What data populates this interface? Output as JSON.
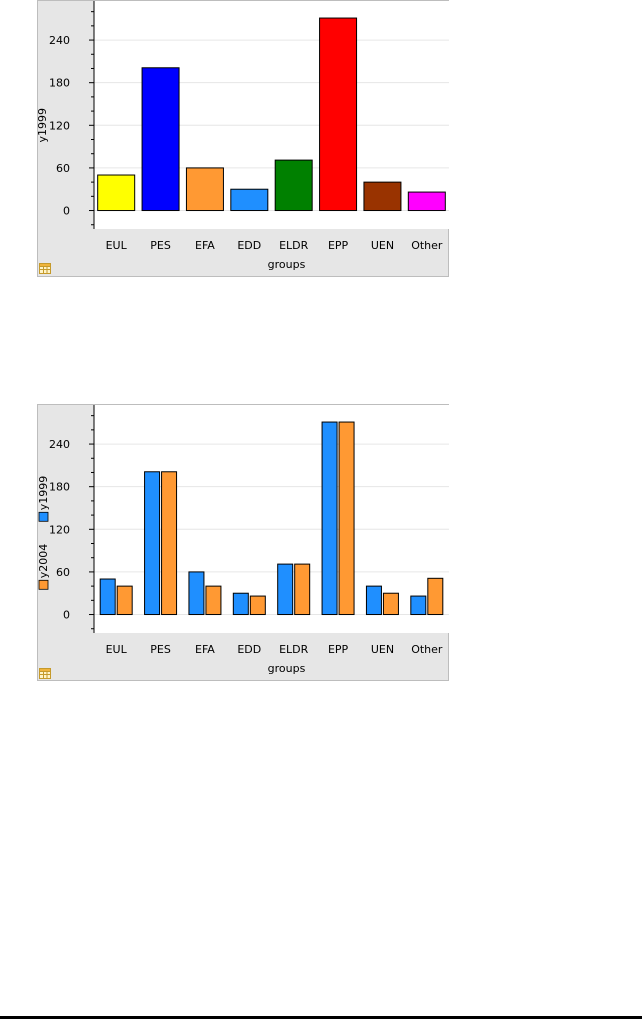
{
  "charts": [
    {
      "id": "chart1",
      "colors": {
        "panel_bg": "#e6e6e6",
        "bars": [
          "#ffff00",
          "#0000ff",
          "#ff9933",
          "#1f8fff",
          "#008000",
          "#ff0000",
          "#993300",
          "#ff00ff"
        ]
      },
      "chart_data": {
        "type": "bar",
        "categories": [
          "EUL",
          "PES",
          "EFA",
          "EDD",
          "ELDR",
          "EPP",
          "UEN",
          "Other"
        ],
        "series": [
          {
            "name": "y1999",
            "values": [
              50,
              201,
              60,
              30,
              71,
              271,
              40,
              26
            ]
          }
        ],
        "xlabel": "groups",
        "ylabel": "y1999",
        "ylim": [
          -26,
          295
        ],
        "yticks": [
          0,
          60,
          120,
          180,
          240
        ],
        "grid": true,
        "legend": "none"
      },
      "labels": {
        "xlabel": "groups",
        "ylabel": "y1999",
        "yticks": [
          "0",
          "60",
          "120",
          "180",
          "240"
        ]
      },
      "icon": "table-icon"
    },
    {
      "id": "chart2",
      "colors": {
        "panel_bg": "#e6e6e6",
        "series": [
          "#1f8fff",
          "#ff9933"
        ]
      },
      "chart_data": {
        "type": "bar",
        "categories": [
          "EUL",
          "PES",
          "EFA",
          "EDD",
          "ELDR",
          "EPP",
          "UEN",
          "Other"
        ],
        "series": [
          {
            "name": "y1999",
            "values": [
              50,
              201,
              60,
              30,
              71,
              271,
              40,
              26
            ]
          },
          {
            "name": "y2004",
            "values": [
              40,
              201,
              40,
              26,
              71,
              271,
              30,
              51
            ]
          }
        ],
        "xlabel": "groups",
        "ylabel": "y1999 / y2004",
        "ylim": [
          -26,
          295
        ],
        "yticks": [
          0,
          60,
          120,
          180,
          240
        ],
        "grid": true,
        "legend": "left-vertical"
      },
      "labels": {
        "xlabel": "groups",
        "legend": [
          "y1999",
          "y2004"
        ],
        "yticks": [
          "0",
          "60",
          "120",
          "180",
          "240"
        ]
      },
      "icon": "table-icon"
    }
  ]
}
